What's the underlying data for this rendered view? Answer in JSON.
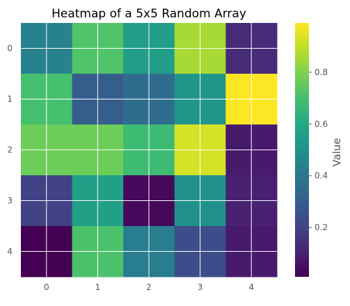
{
  "chart_data": {
    "type": "heatmap",
    "title": "Heatmap of a 5x5 Random Array",
    "x_ticks": [
      "0",
      "1",
      "2",
      "3",
      "4"
    ],
    "y_ticks": [
      "0",
      "1",
      "2",
      "3",
      "4"
    ],
    "values": [
      [
        0.44,
        0.72,
        0.55,
        0.86,
        0.13
      ],
      [
        0.7,
        0.3,
        0.36,
        0.52,
        0.99
      ],
      [
        0.77,
        0.77,
        0.68,
        0.93,
        0.08
      ],
      [
        0.2,
        0.56,
        0.03,
        0.5,
        0.1
      ],
      [
        0.01,
        0.71,
        0.42,
        0.24,
        0.08
      ]
    ],
    "colormap": "viridis",
    "colorbar": {
      "label": "Value",
      "range": [
        0.01,
        0.99
      ],
      "ticks": [
        "0.2",
        "0.4",
        "0.6",
        "0.8"
      ],
      "tick_values": [
        0.2,
        0.4,
        0.6,
        0.8
      ]
    },
    "grid": true
  }
}
